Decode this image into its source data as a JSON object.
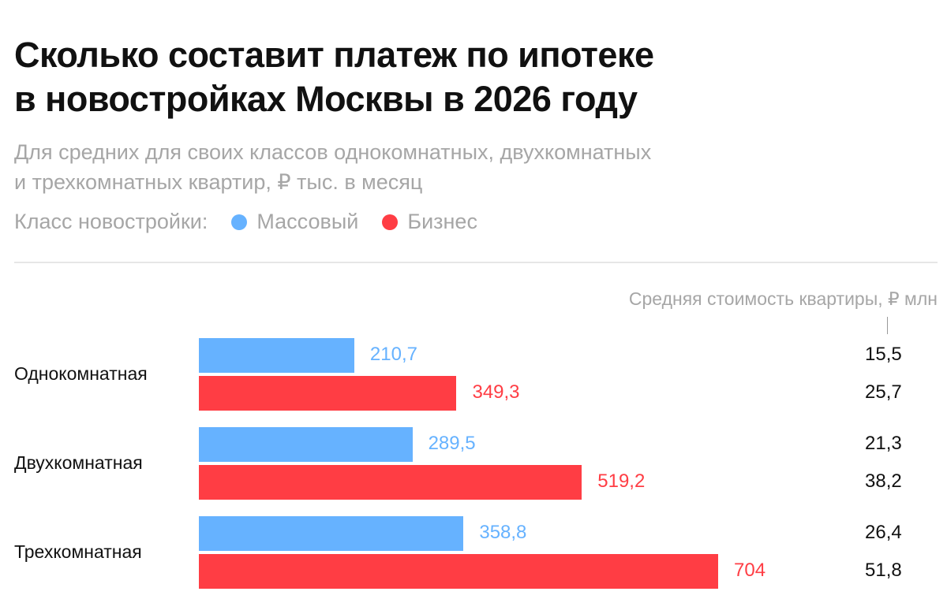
{
  "chart_data": {
    "type": "bar",
    "orientation": "horizontal",
    "title": "Сколько составит платеж по ипотеке в новостройках Москвы в 2026 году",
    "title_lines": [
      "Сколько составит платеж по ипотеке",
      "в новостройках Москвы в 2026 году"
    ],
    "subtitle_lines": [
      "Для средних для своих классов однокомнатных, двухкомнатных",
      "и трехкомнатных квартир, ₽ тыс. в месяц"
    ],
    "legend_title": "Класс новостройки:",
    "legend_placement": "top-left",
    "categories": [
      "Однокомнатная",
      "Двухкомнатная",
      "Трехкомнатная"
    ],
    "series": [
      {
        "name": "Массовый",
        "color": "#66b2ff",
        "values": [
          210.7,
          289.5,
          358.8
        ],
        "labels": [
          "210,7",
          "289,5",
          "358,8"
        ]
      },
      {
        "name": "Бизнес",
        "color": "#ff3d44",
        "values": [
          349.3,
          519.2,
          704
        ],
        "labels": [
          "349,3",
          "519,2",
          "704"
        ]
      }
    ],
    "side_column": {
      "title": "Средняя стоимость квартиры, ₽ млн",
      "values": [
        [
          "15,5",
          "25,7"
        ],
        [
          "21,3",
          "38,2"
        ],
        [
          "26,4",
          "51,8"
        ]
      ]
    },
    "xlim": [
      0,
      704
    ],
    "grid": false
  }
}
